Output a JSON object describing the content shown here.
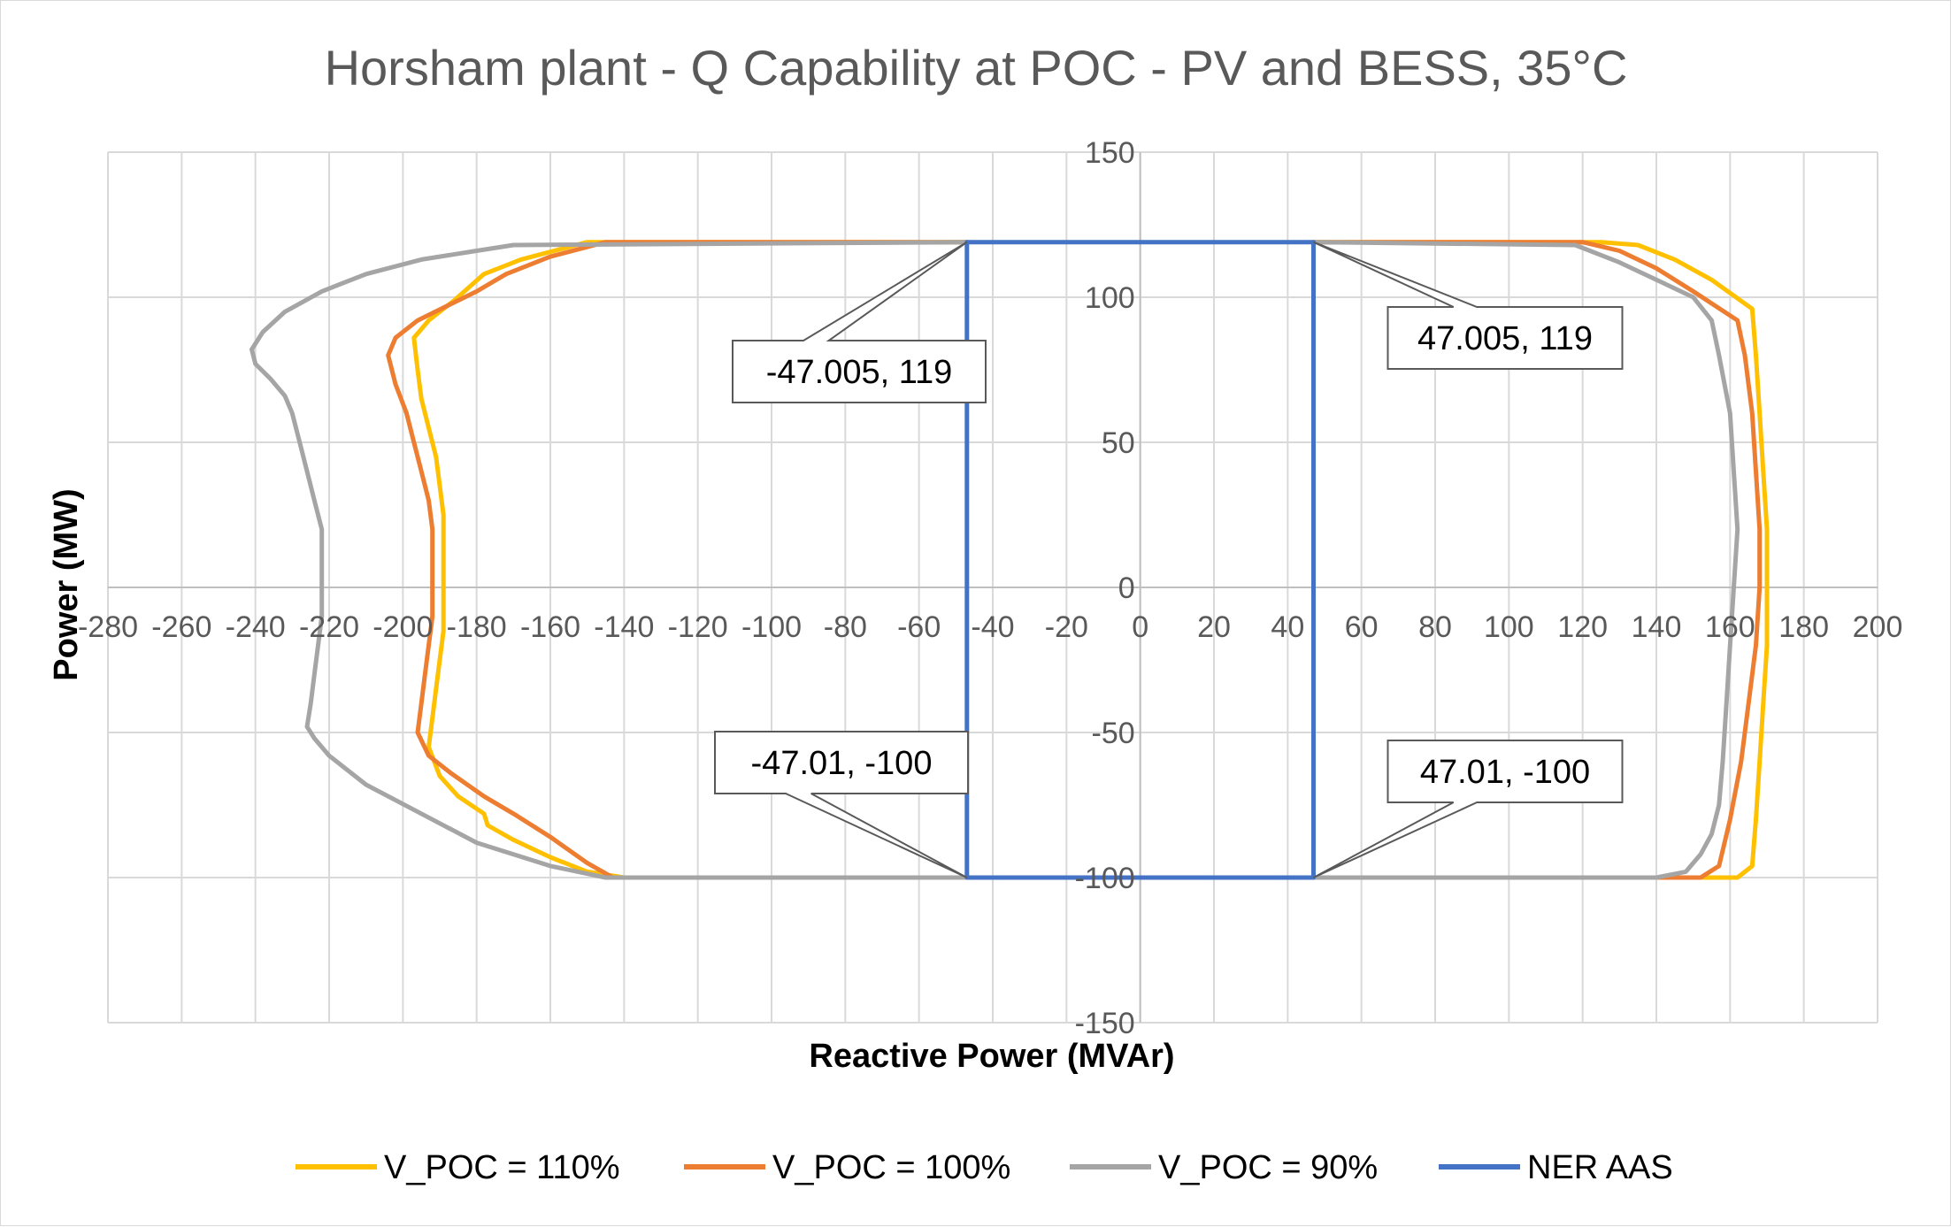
{
  "chart_data": {
    "type": "line",
    "title": "Horsham plant - Q Capability at POC - PV and BESS, 35°C",
    "xlabel": "Reactive Power (MVAr)",
    "ylabel": "Power (MW)",
    "xlim": [
      -280,
      200
    ],
    "ylim": [
      -150,
      150
    ],
    "x_ticks": [
      -280,
      -260,
      -240,
      -220,
      -200,
      -180,
      -160,
      -140,
      -120,
      -100,
      -80,
      -60,
      -40,
      -20,
      0,
      20,
      40,
      60,
      80,
      100,
      120,
      140,
      160,
      180,
      200
    ],
    "y_ticks": [
      -150,
      -100,
      -50,
      0,
      50,
      100,
      150
    ],
    "grid": "major x and y",
    "legend": "bottom",
    "series": [
      {
        "name": "V_POC = 110%",
        "color": "#ffc000",
        "points": [
          [
            -47,
            119
          ],
          [
            -150,
            119
          ],
          [
            -168,
            113
          ],
          [
            -178,
            108
          ],
          [
            -186,
            99
          ],
          [
            -193,
            92
          ],
          [
            -197,
            86
          ],
          [
            -196,
            75
          ],
          [
            -195,
            65
          ],
          [
            -193,
            55
          ],
          [
            -191,
            45
          ],
          [
            -190,
            35
          ],
          [
            -189,
            25
          ],
          [
            -189,
            15
          ],
          [
            -189,
            5
          ],
          [
            -189,
            -5
          ],
          [
            -189,
            -15
          ],
          [
            -190,
            -25
          ],
          [
            -191,
            -35
          ],
          [
            -192,
            -45
          ],
          [
            -193,
            -55
          ],
          [
            -190,
            -65
          ],
          [
            -185,
            -72
          ],
          [
            -178,
            -78
          ],
          [
            -177,
            -82
          ],
          [
            -170,
            -87
          ],
          [
            -160,
            -93
          ],
          [
            -150,
            -98
          ],
          [
            -140,
            -100
          ],
          [
            -47,
            -100
          ],
          [
            47,
            -100
          ],
          [
            150,
            -100
          ],
          [
            162,
            -100
          ],
          [
            166,
            -96
          ],
          [
            167,
            -80
          ],
          [
            168,
            -60
          ],
          [
            169,
            -40
          ],
          [
            170,
            -20
          ],
          [
            170,
            0
          ],
          [
            170,
            20
          ],
          [
            169,
            40
          ],
          [
            168,
            60
          ],
          [
            167,
            80
          ],
          [
            166,
            96
          ],
          [
            155,
            106
          ],
          [
            145,
            113
          ],
          [
            135,
            118
          ],
          [
            125,
            119
          ],
          [
            47,
            119
          ]
        ]
      },
      {
        "name": "V_POC = 100%",
        "color": "#ed7d31",
        "points": [
          [
            -47,
            119
          ],
          [
            -145,
            119
          ],
          [
            -160,
            114
          ],
          [
            -172,
            108
          ],
          [
            -180,
            102
          ],
          [
            -188,
            97
          ],
          [
            -196,
            92
          ],
          [
            -202,
            86
          ],
          [
            -204,
            80
          ],
          [
            -202,
            70
          ],
          [
            -199,
            60
          ],
          [
            -197,
            50
          ],
          [
            -195,
            40
          ],
          [
            -193,
            30
          ],
          [
            -192,
            20
          ],
          [
            -192,
            10
          ],
          [
            -192,
            0
          ],
          [
            -192,
            -10
          ],
          [
            -193,
            -20
          ],
          [
            -194,
            -30
          ],
          [
            -195,
            -40
          ],
          [
            -196,
            -50
          ],
          [
            -193,
            -58
          ],
          [
            -187,
            -64
          ],
          [
            -178,
            -72
          ],
          [
            -170,
            -78
          ],
          [
            -160,
            -86
          ],
          [
            -150,
            -95
          ],
          [
            -143,
            -100
          ],
          [
            -47,
            -100
          ],
          [
            47,
            -100
          ],
          [
            140,
            -100
          ],
          [
            152,
            -100
          ],
          [
            157,
            -96
          ],
          [
            160,
            -80
          ],
          [
            163,
            -60
          ],
          [
            165,
            -40
          ],
          [
            167,
            -20
          ],
          [
            168,
            0
          ],
          [
            168,
            20
          ],
          [
            167,
            40
          ],
          [
            166,
            60
          ],
          [
            164,
            80
          ],
          [
            162,
            92
          ],
          [
            150,
            102
          ],
          [
            140,
            110
          ],
          [
            130,
            116
          ],
          [
            120,
            119
          ],
          [
            47,
            119
          ]
        ]
      },
      {
        "name": "V_POC = 90%",
        "color": "#a5a5a5",
        "points": [
          [
            -47,
            119
          ],
          [
            -170,
            118
          ],
          [
            -180,
            116
          ],
          [
            -195,
            113
          ],
          [
            -210,
            108
          ],
          [
            -222,
            102
          ],
          [
            -232,
            95
          ],
          [
            -238,
            88
          ],
          [
            -241,
            82
          ],
          [
            -240,
            77
          ],
          [
            -236,
            72
          ],
          [
            -232,
            66
          ],
          [
            -230,
            60
          ],
          [
            -228,
            50
          ],
          [
            -226,
            40
          ],
          [
            -224,
            30
          ],
          [
            -222,
            20
          ],
          [
            -222,
            10
          ],
          [
            -222,
            0
          ],
          [
            -222,
            -10
          ],
          [
            -223,
            -20
          ],
          [
            -224,
            -30
          ],
          [
            -225,
            -40
          ],
          [
            -226,
            -48
          ],
          [
            -224,
            -52
          ],
          [
            -220,
            -58
          ],
          [
            -210,
            -68
          ],
          [
            -195,
            -78
          ],
          [
            -180,
            -88
          ],
          [
            -160,
            -96
          ],
          [
            -145,
            -100
          ],
          [
            -47,
            -100
          ],
          [
            47,
            -100
          ],
          [
            140,
            -100
          ],
          [
            148,
            -98
          ],
          [
            152,
            -92
          ],
          [
            155,
            -85
          ],
          [
            157,
            -75
          ],
          [
            158,
            -60
          ],
          [
            159,
            -40
          ],
          [
            160,
            -20
          ],
          [
            161,
            0
          ],
          [
            162,
            20
          ],
          [
            161,
            40
          ],
          [
            160,
            60
          ],
          [
            157,
            80
          ],
          [
            155,
            92
          ],
          [
            150,
            100
          ],
          [
            140,
            106
          ],
          [
            130,
            112
          ],
          [
            118,
            118
          ],
          [
            47,
            119
          ]
        ]
      },
      {
        "name": "NER AAS",
        "color": "#4472c4",
        "points": [
          [
            -47.005,
            119
          ],
          [
            47.005,
            119
          ],
          [
            47.01,
            -100
          ],
          [
            -47.01,
            -100
          ],
          [
            -47.005,
            119
          ]
        ]
      }
    ],
    "annotations": [
      {
        "text": "-47.005, 119",
        "x": -47.005,
        "y": 119
      },
      {
        "text": "47.005, 119",
        "x": 47.005,
        "y": 119
      },
      {
        "text": "-47.01, -100",
        "x": -47.01,
        "y": -100
      },
      {
        "text": "47.01, -100",
        "x": 47.01,
        "y": -100
      }
    ]
  }
}
